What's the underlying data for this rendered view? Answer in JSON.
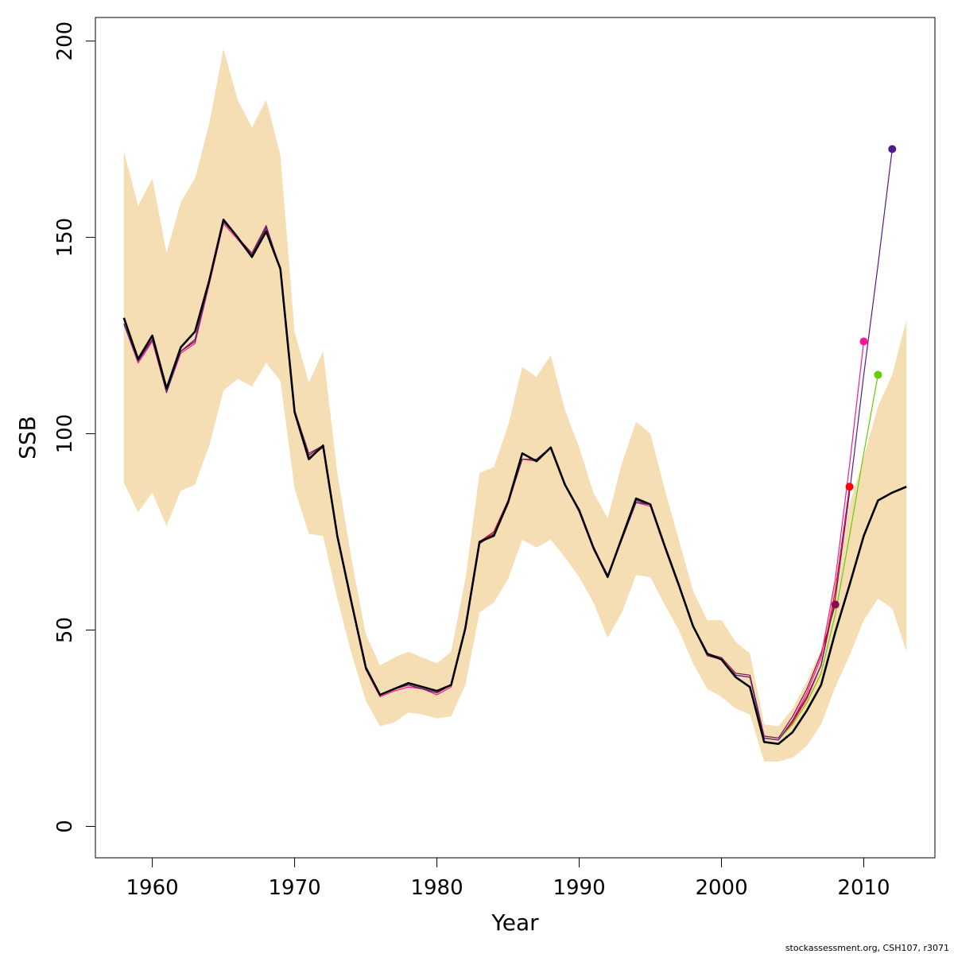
{
  "chart_data": {
    "type": "line",
    "xlabel": "Year",
    "ylabel": "SSB",
    "xlim": [
      1956,
      2015
    ],
    "ylim": [
      -8,
      206
    ],
    "x_ticks": [
      1960,
      1970,
      1980,
      1990,
      2000,
      2010
    ],
    "y_ticks": [
      0,
      50,
      100,
      150,
      200
    ],
    "grid": false,
    "credit": "stockassessment.org, CSH107, r3071",
    "colors": {
      "band": "#F5DEB3",
      "main": "#000000",
      "retro_2008": "#8B0A50",
      "retro_2009": "#FF0000",
      "retro_2010": "#FF1493",
      "retro_2011": "#66CD00",
      "retro_2012": "#551A8B"
    },
    "confidence_band": {
      "x": [
        1958,
        1959,
        1960,
        1961,
        1962,
        1963,
        1964,
        1965,
        1966,
        1967,
        1968,
        1969,
        1970,
        1971,
        1972,
        1973,
        1974,
        1975,
        1976,
        1977,
        1978,
        1979,
        1980,
        1981,
        1982,
        1983,
        1984,
        1985,
        1986,
        1987,
        1988,
        1989,
        1990,
        1991,
        1992,
        1993,
        1994,
        1995,
        1996,
        1997,
        1998,
        1999,
        2000,
        2001,
        2002,
        2003,
        2004,
        2005,
        2006,
        2007,
        2008,
        2009,
        2010,
        2011,
        2012,
        2013
      ],
      "upper": [
        172,
        158,
        165,
        146,
        159,
        165,
        179,
        198,
        185,
        178,
        185,
        171,
        126,
        113,
        121,
        90,
        68,
        49,
        41,
        43,
        44.5,
        43,
        41.5,
        44.5,
        63,
        90,
        91.5,
        102,
        117,
        114.5,
        120,
        106,
        96.5,
        85,
        78.5,
        92.5,
        103,
        100,
        86,
        73,
        60,
        52.5,
        52.5,
        47,
        44,
        26,
        25.5,
        30,
        37,
        45,
        62,
        82,
        94,
        107,
        115,
        129
      ],
      "lower": [
        87.5,
        80,
        85,
        76.5,
        85.5,
        87,
        97,
        111,
        114,
        112,
        118,
        113.5,
        86,
        74.5,
        74,
        58,
        44,
        32,
        25.5,
        26.5,
        29,
        28.5,
        27.5,
        28,
        36,
        54.5,
        57,
        63,
        73,
        71,
        73,
        68.5,
        63.5,
        57,
        48,
        54.5,
        64,
        63.5,
        56.5,
        50,
        41.5,
        35,
        33,
        30,
        28.5,
        16.5,
        16.5,
        17.5,
        20.5,
        26,
        35.5,
        43.5,
        52.5,
        58,
        55.5,
        44.5
      ]
    },
    "series": [
      {
        "color": "#000000",
        "x": [
          1958,
          1959,
          1960,
          1961,
          1962,
          1963,
          1964,
          1965,
          1966,
          1967,
          1968,
          1969,
          1970,
          1971,
          1972,
          1973,
          1974,
          1975,
          1976,
          1977,
          1978,
          1979,
          1980,
          1981,
          1982,
          1983,
          1984,
          1985,
          1986,
          1987,
          1988,
          1989,
          1990,
          1991,
          1992,
          1993,
          1994,
          1995,
          1996,
          1997,
          1998,
          1999,
          2000,
          2001,
          2002,
          2003,
          2004,
          2005,
          2006,
          2007,
          2008,
          2009,
          2010,
          2011,
          2012,
          2013
        ],
        "values": [
          129.5,
          119,
          125,
          111.5,
          122,
          126,
          139,
          154.5,
          150,
          145,
          151.5,
          142,
          105.5,
          93.5,
          97,
          74,
          57,
          40.5,
          33.5,
          35,
          36.5,
          35.5,
          34.5,
          36,
          50.5,
          72.5,
          74,
          82.5,
          95,
          93,
          96.5,
          87,
          80.5,
          71,
          63.5,
          73.5,
          83.5,
          82,
          71.5,
          61.5,
          51,
          44,
          42.5,
          38,
          35.5,
          21.5,
          21,
          24,
          29.5,
          36,
          49.5,
          61.5,
          74,
          83,
          85,
          86.5
        ]
      },
      {
        "color": "#8B0A50",
        "x": [
          1958,
          1959,
          1960,
          1961,
          1962,
          1963,
          1964,
          1965,
          1966,
          1967,
          1968,
          1969,
          1970,
          1971,
          1972,
          1973,
          1974,
          1975,
          1976,
          1977,
          1978,
          1979,
          1980,
          1981,
          1982,
          1983,
          1984,
          1985,
          1986,
          1987,
          1988,
          1989,
          1990,
          1991,
          1992,
          1993,
          1994,
          1995,
          1996,
          1997,
          1998,
          1999,
          2000,
          2001,
          2002,
          2003,
          2004,
          2005,
          2006,
          2007,
          2008
        ],
        "values": [
          128,
          119,
          124,
          111,
          121,
          124,
          139,
          154,
          150,
          146,
          153,
          142,
          106,
          95,
          97,
          74,
          57,
          40.5,
          33.5,
          35,
          36,
          35,
          34,
          36,
          50.5,
          72.5,
          75,
          83,
          93.5,
          93.5,
          96.5,
          87,
          80.5,
          71,
          64,
          73,
          83,
          82,
          71.5,
          61.5,
          51,
          44,
          43,
          39,
          38.5,
          23,
          22.5,
          28,
          35,
          44,
          56.5
        ]
      },
      {
        "color": "#FF0000",
        "x": [
          1958,
          1959,
          1960,
          1961,
          1962,
          1963,
          1964,
          1965,
          1966,
          1967,
          1968,
          1969,
          1970,
          1971,
          1972,
          1973,
          1974,
          1975,
          1976,
          1977,
          1978,
          1979,
          1980,
          1981,
          1982,
          1983,
          1984,
          1985,
          1986,
          1987,
          1988,
          1989,
          1990,
          1991,
          1992,
          1993,
          1994,
          1995,
          1996,
          1997,
          1998,
          1999,
          2000,
          2001,
          2002,
          2003,
          2004,
          2005,
          2006,
          2007,
          2008,
          2009
        ],
        "values": [
          128,
          118.5,
          124,
          111,
          121,
          123.5,
          138.5,
          154,
          150,
          145.5,
          152.5,
          142,
          105.5,
          94.5,
          97,
          73.5,
          57,
          40,
          33.5,
          35,
          36,
          35,
          34,
          36,
          50,
          72,
          75,
          82.5,
          93.5,
          93.5,
          96.5,
          87,
          80.5,
          71,
          64,
          73,
          82.5,
          82,
          71.5,
          61.5,
          51,
          43.5,
          42.5,
          38.5,
          38,
          22.5,
          22,
          26.5,
          32.5,
          41,
          60,
          86.5
        ]
      },
      {
        "color": "#FF1493",
        "x": [
          1958,
          1959,
          1960,
          1961,
          1962,
          1963,
          1964,
          1965,
          1966,
          1967,
          1968,
          1969,
          1970,
          1971,
          1972,
          1973,
          1974,
          1975,
          1976,
          1977,
          1978,
          1979,
          1980,
          1981,
          1982,
          1983,
          1984,
          1985,
          1986,
          1987,
          1988,
          1989,
          1990,
          1991,
          1992,
          1993,
          1994,
          1995,
          1996,
          1997,
          1998,
          1999,
          2000,
          2001,
          2002,
          2003,
          2004,
          2005,
          2006,
          2007,
          2008,
          2009,
          2010
        ],
        "values": [
          128,
          118,
          123.5,
          110.5,
          120.5,
          123,
          138,
          153.5,
          149.5,
          145,
          152,
          142,
          105,
          94,
          96.5,
          73.5,
          56.5,
          40,
          33,
          34.5,
          35.5,
          35,
          33.5,
          35.5,
          50,
          72,
          74.5,
          82,
          93.5,
          93,
          96.5,
          87,
          80,
          70.5,
          63.5,
          73,
          82.5,
          81.5,
          71,
          61,
          51,
          43.5,
          42.5,
          38.5,
          38,
          22.5,
          22,
          27,
          34,
          43,
          63,
          92,
          123.5
        ]
      },
      {
        "color": "#66CD00",
        "x": [
          1958,
          1959,
          1960,
          1961,
          1962,
          1963,
          1964,
          1965,
          1966,
          1967,
          1968,
          1969,
          1970,
          1971,
          1972,
          1973,
          1974,
          1975,
          1976,
          1977,
          1978,
          1979,
          1980,
          1981,
          1982,
          1983,
          1984,
          1985,
          1986,
          1987,
          1988,
          1989,
          1990,
          1991,
          1992,
          1993,
          1994,
          1995,
          1996,
          1997,
          1998,
          1999,
          2000,
          2001,
          2002,
          2003,
          2004,
          2005,
          2006,
          2007,
          2008,
          2009,
          2010,
          2011
        ],
        "values": [
          128,
          118.5,
          124,
          110.5,
          121,
          123.5,
          138.5,
          154,
          150,
          145.5,
          152.5,
          142,
          105.5,
          94.5,
          97,
          73.5,
          57,
          40,
          33.5,
          35,
          36,
          35,
          34,
          36,
          50,
          72,
          74.5,
          82.5,
          93.5,
          93.5,
          96.5,
          87,
          80.5,
          71,
          64,
          73,
          82.5,
          82,
          71.5,
          61.5,
          51,
          43.5,
          42.5,
          38.5,
          38,
          22.5,
          22,
          26,
          31.5,
          39,
          54,
          74,
          95,
          115
        ]
      },
      {
        "color": "#551A8B",
        "x": [
          1958,
          1959,
          1960,
          1961,
          1962,
          1963,
          1964,
          1965,
          1966,
          1967,
          1968,
          1969,
          1970,
          1971,
          1972,
          1973,
          1974,
          1975,
          1976,
          1977,
          1978,
          1979,
          1980,
          1981,
          1982,
          1983,
          1984,
          1985,
          1986,
          1987,
          1988,
          1989,
          1990,
          1991,
          1992,
          1993,
          1994,
          1995,
          1996,
          1997,
          1998,
          1999,
          2000,
          2001,
          2002,
          2003,
          2004,
          2005,
          2006,
          2007,
          2008,
          2009,
          2010,
          2011,
          2012
        ],
        "values": [
          128,
          118.5,
          124,
          110.5,
          121,
          123.5,
          138.5,
          154,
          150,
          145.5,
          152.5,
          142,
          105.5,
          94.5,
          97,
          73.5,
          57,
          40,
          33.5,
          35,
          36,
          35,
          34,
          36,
          50,
          72,
          74.5,
          82.5,
          93.5,
          93.5,
          96.5,
          87,
          80.5,
          71,
          64,
          73,
          82.5,
          82,
          71.5,
          61.5,
          51,
          43.5,
          42.5,
          38.5,
          38,
          22.5,
          22,
          27,
          33,
          41,
          58,
          85,
          115,
          143,
          172.5
        ]
      }
    ],
    "endpoints": [
      {
        "x": 2008,
        "y": 56.5,
        "color": "#8B0A50"
      },
      {
        "x": 2009,
        "y": 86.5,
        "color": "#FF0000"
      },
      {
        "x": 2010,
        "y": 123.5,
        "color": "#FF1493"
      },
      {
        "x": 2011,
        "y": 115,
        "color": "#66CD00"
      },
      {
        "x": 2012,
        "y": 172.5,
        "color": "#551A8B"
      }
    ]
  }
}
